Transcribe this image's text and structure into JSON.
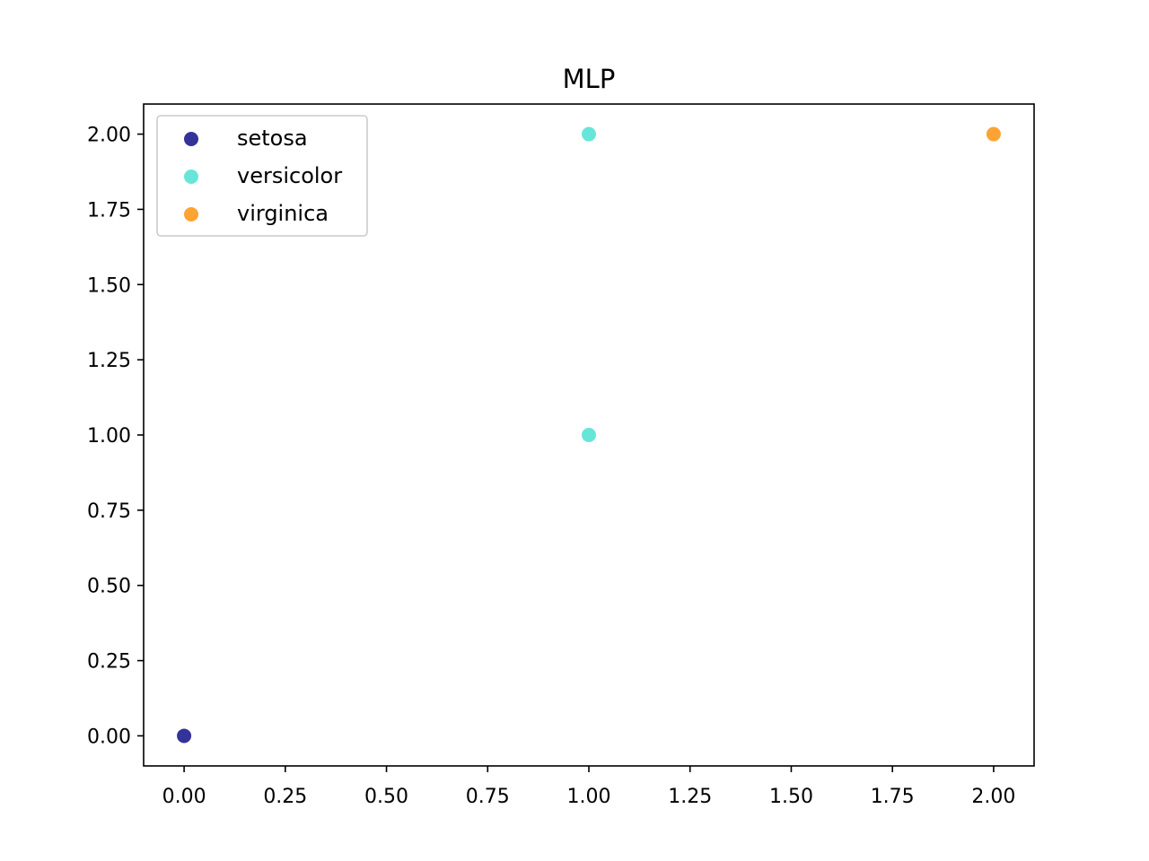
{
  "chart_data": {
    "type": "scatter",
    "title": "MLP",
    "xlabel": "",
    "ylabel": "",
    "xlim": [
      -0.1,
      2.1
    ],
    "ylim": [
      -0.1,
      2.1
    ],
    "xticks": [
      "0.00",
      "0.25",
      "0.50",
      "0.75",
      "1.00",
      "1.25",
      "1.50",
      "1.75",
      "2.00"
    ],
    "yticks": [
      "0.00",
      "0.25",
      "0.50",
      "0.75",
      "1.00",
      "1.25",
      "1.50",
      "1.75",
      "2.00"
    ],
    "grid": false,
    "legend_position": "upper-left",
    "series": [
      {
        "name": "setosa",
        "color": "#000080",
        "points": [
          [
            0,
            0
          ]
        ]
      },
      {
        "name": "versicolor",
        "color": "#40e0d0",
        "points": [
          [
            1,
            1
          ],
          [
            1,
            2
          ]
        ]
      },
      {
        "name": "virginica",
        "color": "#ff8c00",
        "points": [
          [
            2,
            2
          ]
        ]
      }
    ]
  }
}
